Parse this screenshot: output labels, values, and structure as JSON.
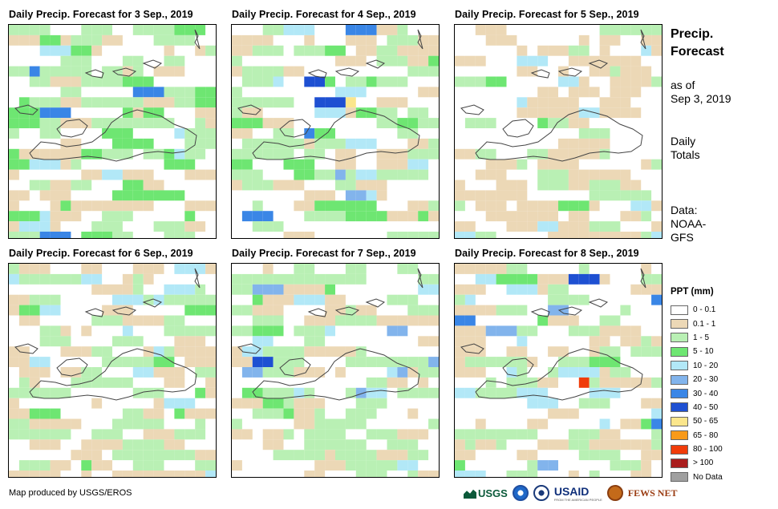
{
  "panels": [
    {
      "title": "Daily Precip. Forecast for 3 Sep., 2019"
    },
    {
      "title": "Daily Precip. Forecast for 4 Sep., 2019"
    },
    {
      "title": "Daily Precip. Forecast for 5 Sep., 2019"
    },
    {
      "title": "Daily Precip. Forecast for 6 Sep., 2019"
    },
    {
      "title": "Daily Precip. Forecast for 7 Sep., 2019"
    },
    {
      "title": "Daily Precip. Forecast for 8 Sep., 2019"
    }
  ],
  "side": {
    "title_line1": "Precip.",
    "title_line2": "Forecast",
    "asof_line1": "as of",
    "asof_line2": "Sep 3, 2019",
    "totals_line1": "Daily",
    "totals_line2": "Totals",
    "data_line1": "Data:",
    "data_line2": "NOAA-",
    "data_line3": "GFS"
  },
  "legend": {
    "title": "PPT (mm)",
    "items": [
      {
        "label": "0 - 0.1",
        "color": "#ffffff"
      },
      {
        "label": "0.1 - 1",
        "color": "#ecd8b6"
      },
      {
        "label": "1 - 5",
        "color": "#b9f0b4"
      },
      {
        "label": "5 - 10",
        "color": "#6ee672"
      },
      {
        "label": "10 - 20",
        "color": "#b2e8f7"
      },
      {
        "label": "20 - 30",
        "color": "#82b4ec"
      },
      {
        "label": "30 - 40",
        "color": "#3a86e6"
      },
      {
        "label": "40 - 50",
        "color": "#1e50d2"
      },
      {
        "label": "50 - 65",
        "color": "#fbe68c"
      },
      {
        "label": "65 - 80",
        "color": "#f89a1a"
      },
      {
        "label": "80 - 100",
        "color": "#f03c0a"
      },
      {
        "label": "> 100",
        "color": "#aa1e1e"
      },
      {
        "label": "No Data",
        "color": "#a0a0a0"
      }
    ]
  },
  "credit": "Map produced by USGS/EROS",
  "logos": {
    "usgs": "USGS",
    "usaid": "USAID",
    "usaid_sub": "FROM THE AMERICAN PEOPLE",
    "fews": "FEWS NET"
  }
}
